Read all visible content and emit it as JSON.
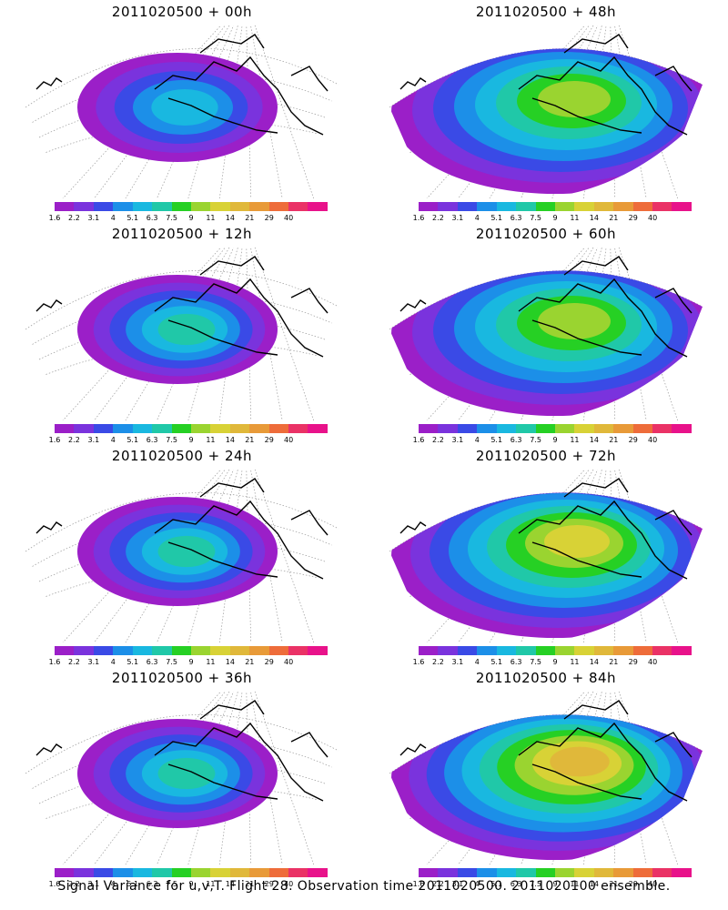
{
  "figure": {
    "caption": "Signal Variance for u,v,T. Flight 28. Observation time 2011020500. 2011020100 ensemble.",
    "colorbar": {
      "colors": [
        "#9b1fc8",
        "#7a33dd",
        "#3a4ae6",
        "#1c8fe8",
        "#19b8e0",
        "#20c8a8",
        "#26d024",
        "#9ad430",
        "#d8d236",
        "#e0b83a",
        "#e89a38",
        "#ee6c3a",
        "#ea3266",
        "#e8128a"
      ],
      "tick_labels": [
        "1.6",
        "2.2",
        "3.1",
        "4",
        "5.1",
        "6.3",
        "7.5",
        "9",
        "11",
        "14",
        "21",
        "29",
        "40"
      ]
    },
    "panels": [
      {
        "title": "2011020500 + 00h"
      },
      {
        "title": "2011020500 + 48h"
      },
      {
        "title": "2011020500 + 12h"
      },
      {
        "title": "2011020500 + 60h"
      },
      {
        "title": "2011020500 + 24h"
      },
      {
        "title": "2011020500 + 72h"
      },
      {
        "title": "2011020500 + 36h"
      },
      {
        "title": "2011020500 + 84h"
      }
    ]
  }
}
